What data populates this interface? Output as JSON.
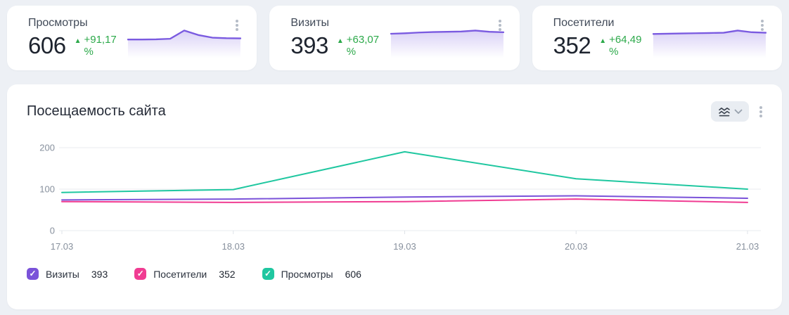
{
  "cards": [
    {
      "title": "Просмотры",
      "value": "606",
      "change": "+91,17 %",
      "spark": [
        62,
        62,
        63,
        66,
        110,
        86,
        72,
        69,
        68
      ]
    },
    {
      "title": "Визиты",
      "value": "393",
      "change": "+63,07 %",
      "spark": [
        70,
        72,
        75,
        77,
        78,
        79,
        83,
        78,
        76
      ]
    },
    {
      "title": "Посетители",
      "value": "352",
      "change": "+64,49 %",
      "spark": [
        70,
        71,
        72,
        73,
        74,
        75,
        84,
        77,
        75
      ]
    }
  ],
  "panel": {
    "title": "Посещаемость сайта"
  },
  "chart_data": {
    "type": "line",
    "title": "Посещаемость сайта",
    "x": [
      "17.03",
      "18.03",
      "19.03",
      "20.03",
      "21.03"
    ],
    "series": [
      {
        "name": "Визиты",
        "color": "#7a52d9",
        "values": [
          74,
          76,
          81,
          84,
          78
        ],
        "total": "393"
      },
      {
        "name": "Посетители",
        "color": "#f03c92",
        "values": [
          70,
          68,
          70,
          76,
          68
        ],
        "total": "352"
      },
      {
        "name": "Просмотры",
        "color": "#1fc7a0",
        "values": [
          92,
          99,
          190,
          125,
          100
        ],
        "total": "606"
      }
    ],
    "ylim": [
      0,
      200
    ],
    "yticks": [
      0,
      100,
      200
    ],
    "grid": true,
    "legend_position": "bottom"
  },
  "colors": {
    "spark_line": "#7a5ae0",
    "positive_change": "#2ca94a",
    "axis_text": "#87909d",
    "grid_line": "#e8ebef"
  },
  "icons": {
    "triangle_up": "▲",
    "check": "✓"
  }
}
